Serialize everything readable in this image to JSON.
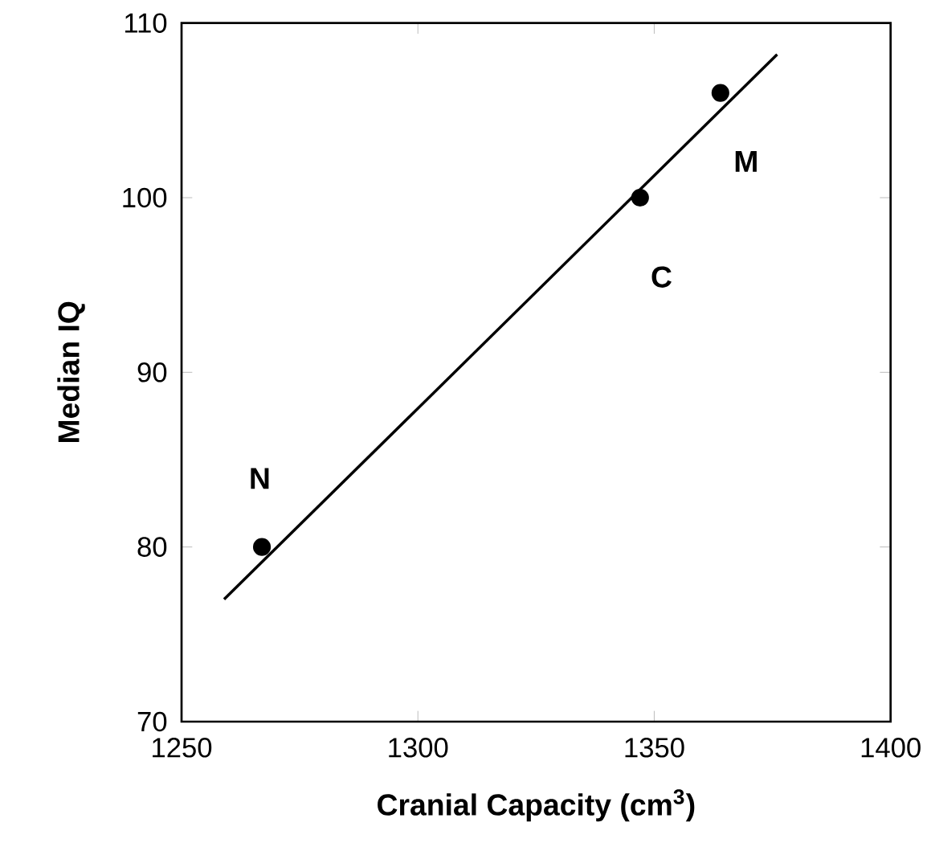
{
  "chart_data": {
    "type": "scatter",
    "xlabel": "Cranial Capacity   (cm$^{3}$)",
    "ylabel": "Median  IQ",
    "xlim": [
      1250,
      1400
    ],
    "xticks": [
      1250,
      1300,
      1350,
      1400
    ],
    "ylim": [
      70,
      110
    ],
    "yticks": [
      70,
      80,
      90,
      100,
      110
    ],
    "series": [
      {
        "color": "#000000",
        "marker": "circle",
        "x": [
          1267,
          1347,
          1364
        ],
        "values": [
          80,
          100,
          106
        ]
      },
      {
        "type": "line",
        "color": "#000000",
        "marker": "none",
        "x": [
          1259,
          1376
        ],
        "values": [
          77,
          108.2
        ]
      }
    ],
    "grid": false,
    "annotations": [
      {
        "text": "N",
        "x": 1267,
        "y": 80
      },
      {
        "text": "C",
        "x": 1347,
        "y": 100
      },
      {
        "text": "M",
        "x": 1364,
        "y": 106
      }
    ]
  }
}
